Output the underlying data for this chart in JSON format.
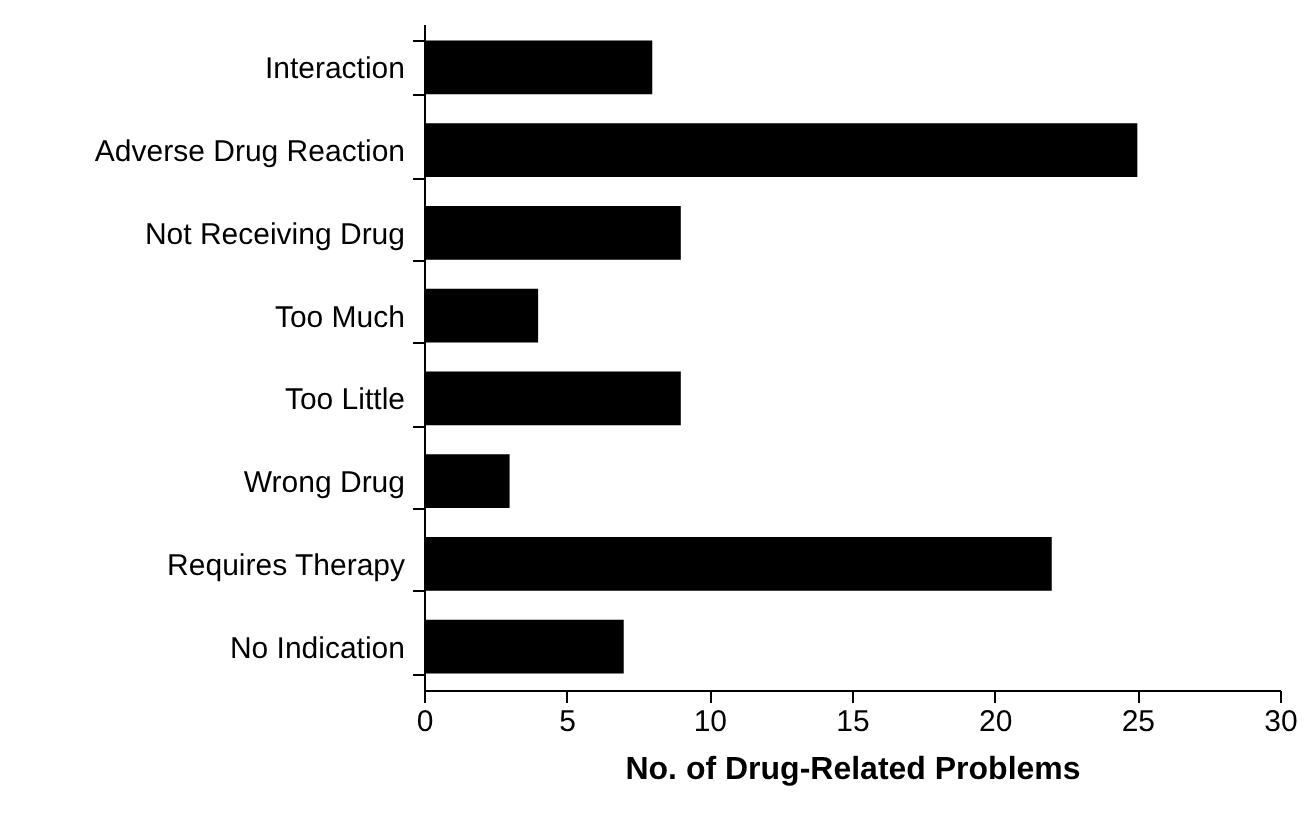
{
  "chart_data": {
    "type": "bar",
    "orientation": "horizontal",
    "xlabel": "No. of Drug-Related Problems",
    "categories": [
      "Interaction",
      "Adverse Drug Reaction",
      "Not Receiving Drug",
      "Too Much",
      "Too Little",
      "Wrong Drug",
      "Requires Therapy",
      "No Indication"
    ],
    "values": [
      8,
      25,
      9,
      4,
      9,
      3,
      22,
      7
    ],
    "color": "#000000",
    "xlim": [
      0,
      30
    ],
    "xticks": [
      0,
      5,
      10,
      15,
      20,
      25,
      30
    ],
    "grid": false
  }
}
